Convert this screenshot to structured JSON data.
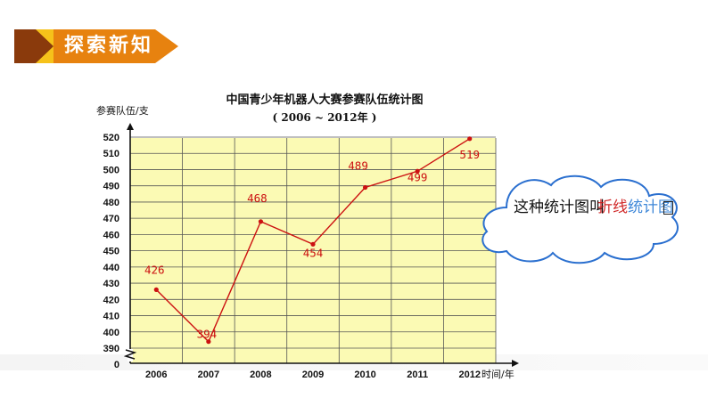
{
  "banner": {
    "label": "探索新知",
    "colors": {
      "dark": "#8a3a0c",
      "orange": "#e7820f",
      "yellow": "#f6c21a"
    }
  },
  "chart_data": {
    "type": "line",
    "title": "中国青少年机器人大赛参赛队伍统计图",
    "subtitle": "( 2006 ~ 2012年 )",
    "ylabel": "参赛队伍/支",
    "xlabel": "时间/年",
    "categories": [
      "2006",
      "2007",
      "2008",
      "2009",
      "2010",
      "2011",
      "2012"
    ],
    "values": [
      426,
      394,
      468,
      454,
      489,
      499,
      519
    ],
    "ylim": [
      390,
      520
    ],
    "yticks": [
      0,
      390,
      400,
      410,
      420,
      430,
      440,
      450,
      460,
      470,
      480,
      490,
      500,
      510,
      520
    ],
    "axis_break": true,
    "grid": true,
    "colors": {
      "line": "#cc1111",
      "plot_bg": "#fbfab4",
      "grid": "#555555"
    }
  },
  "cloud": {
    "text": "这种统计图叫",
    "overlay_red": "折线",
    "overlay_blue": "统计图"
  }
}
